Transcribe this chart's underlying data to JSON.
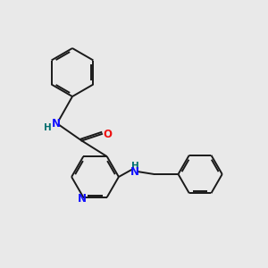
{
  "background_color": "#e9e9e9",
  "bond_color": "#1a1a1a",
  "atom_colors": {
    "N": "#1010ff",
    "O": "#ee1111",
    "H": "#007070",
    "C": "#1a1a1a"
  },
  "figsize": [
    3.0,
    3.0
  ],
  "dpi": 100,
  "lw": 1.4
}
